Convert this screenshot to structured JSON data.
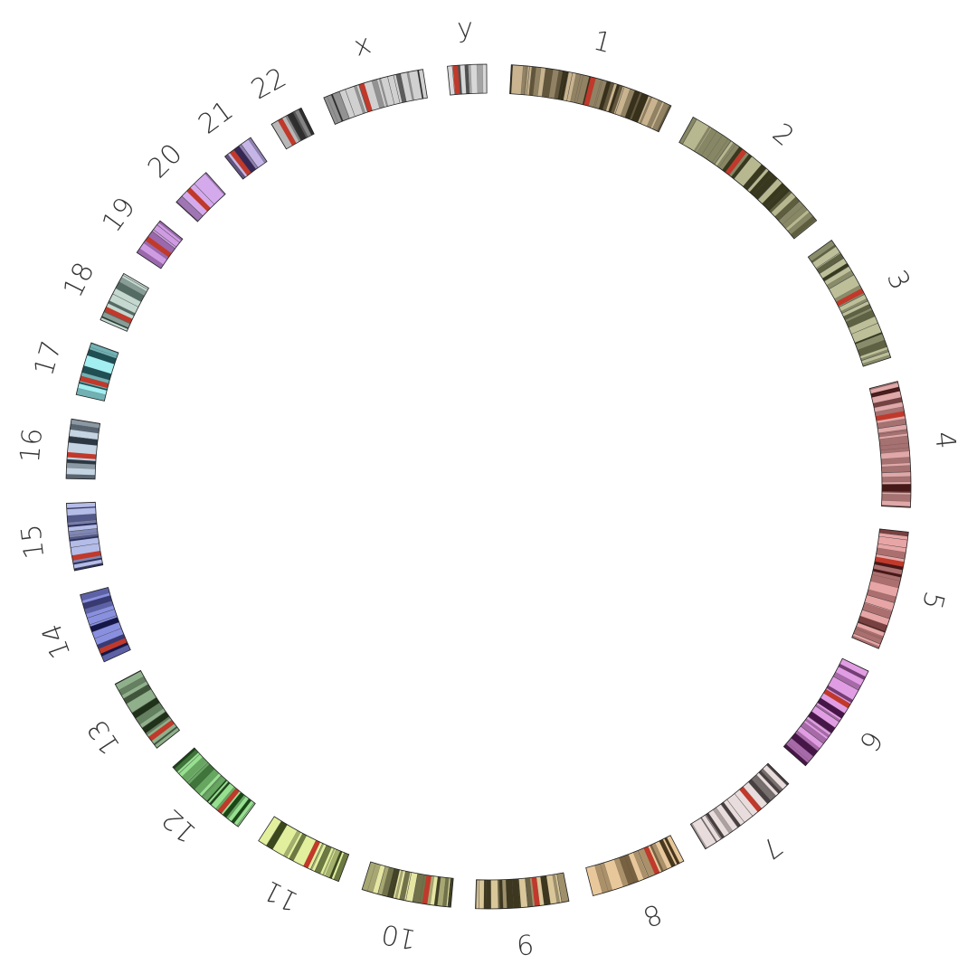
{
  "chromosomes": [
    {
      "label": "1",
      "length": 249,
      "color": "#c9b48f",
      "dark": "#2a2410",
      "centromere": 0.5
    },
    {
      "label": "2",
      "length": 243,
      "color": "#b8b890",
      "dark": "#2d2d14",
      "centromere": 0.38
    },
    {
      "label": "3",
      "length": 198,
      "color": "#bcbf98",
      "dark": "#2b2e14",
      "centromere": 0.45
    },
    {
      "label": "4",
      "length": 191,
      "color": "#e0a8a8",
      "dark": "#3a0b0b",
      "centromere": 0.26
    },
    {
      "label": "5",
      "length": 181,
      "color": "#e8a5a5",
      "dark": "#3c0a0a",
      "centromere": 0.27
    },
    {
      "label": "6",
      "length": 171,
      "color": "#e19de3",
      "dark": "#3a0a3a",
      "centromere": 0.35
    },
    {
      "label": "7",
      "length": 159,
      "color": "#e9dcdc",
      "dark": "#3a3232",
      "centromere": 0.37
    },
    {
      "label": "8",
      "length": 146,
      "color": "#e8c89b",
      "dark": "#3a2a10",
      "centromere": 0.3
    },
    {
      "label": "9",
      "length": 141,
      "color": "#d9c79a",
      "dark": "#2f2a14",
      "centromere": 0.34
    },
    {
      "label": "10",
      "length": 136,
      "color": "#e6e6a3",
      "dark": "#33331a",
      "centromere": 0.29
    },
    {
      "label": "11",
      "length": 135,
      "color": "#e2ef9d",
      "dark": "#2d3a10",
      "centromere": 0.4
    },
    {
      "label": "12",
      "length": 133,
      "color": "#97e090",
      "dark": "#0f3a0b",
      "centromere": 0.27
    },
    {
      "label": "13",
      "length": 115,
      "color": "#8fb08b",
      "dark": "#15260f",
      "centromere": 0.15
    },
    {
      "label": "14",
      "length": 107,
      "color": "#8a90e0",
      "dark": "#0a0c3a",
      "centromere": 0.16
    },
    {
      "label": "15",
      "length": 102,
      "color": "#b4bce8",
      "dark": "#1f2454",
      "centromere": 0.19
    },
    {
      "label": "16",
      "length": 90,
      "color": "#c5d4e2",
      "dark": "#1e2a35",
      "centromere": 0.4
    },
    {
      "label": "17",
      "length": 81,
      "color": "#a3eef0",
      "dark": "#134045",
      "centromere": 0.31
    },
    {
      "label": "18",
      "length": 78,
      "color": "#c4d8cf",
      "dark": "#18302a",
      "centromere": 0.23
    },
    {
      "label": "19",
      "length": 59,
      "color": "#cf9be3",
      "dark": "#3a0a4a",
      "centromere": 0.44
    },
    {
      "label": "20",
      "length": 63,
      "color": "#d5aaed",
      "dark": "#3a1248",
      "centromere": 0.42
    },
    {
      "label": "21",
      "length": 48,
      "color": "#c6b6e8",
      "dark": "#2a1c48",
      "centromere": 0.27
    },
    {
      "label": "22",
      "length": 51,
      "color": "#b8b8b8",
      "dark": "#222222",
      "centromere": 0.29
    },
    {
      "label": "x",
      "length": 155,
      "color": "#d0d0d0",
      "dark": "#1e1e1e",
      "centromere": 0.39
    },
    {
      "label": "y",
      "length": 59,
      "color": "#d8d8d8",
      "dark": "#444444",
      "centromere": 0.2
    }
  ],
  "centromere_color": "#c0392b"
}
